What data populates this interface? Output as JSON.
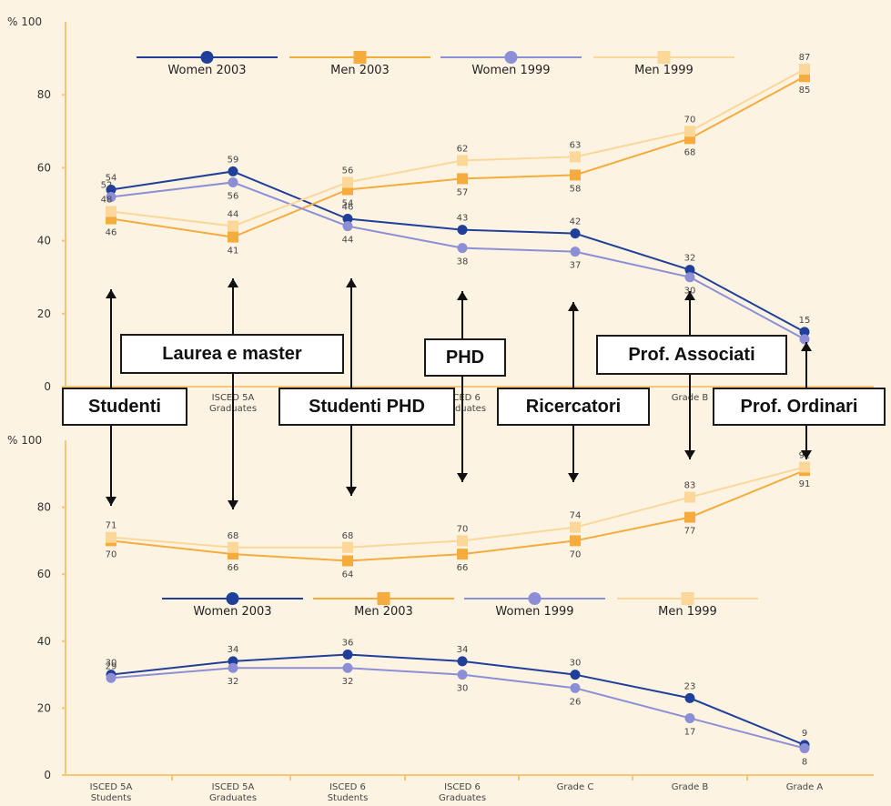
{
  "chart_data": [
    {
      "type": "line",
      "y_axis_top_label": "% 100",
      "ylim": [
        0,
        100
      ],
      "yticks": [
        "0",
        "20",
        "40",
        "60",
        "80"
      ],
      "categories": [
        "",
        "ISCED 5A\nGraduates",
        "",
        "ISCED 6\nGraduates",
        "",
        "Grade B",
        ""
      ],
      "legend": [
        "Women 2003",
        "Men 2003",
        "Women 1999",
        "Men 1999"
      ],
      "series": [
        {
          "name": "Women 2003",
          "color": "#1f3f99",
          "marker": "circle",
          "values": [
            54,
            59,
            46,
            43,
            42,
            32,
            15
          ],
          "labels": [
            "54",
            "59",
            "46",
            "43",
            "42",
            "32",
            "15"
          ]
        },
        {
          "name": "Men 2003",
          "color": "#f5ac3d",
          "marker": "square",
          "values": [
            46,
            41,
            54,
            57,
            58,
            68,
            85
          ],
          "labels": [
            "46",
            "41",
            "54",
            "57",
            "58",
            "68",
            "85"
          ]
        },
        {
          "name": "Women 1999",
          "color": "#8d8fd6",
          "marker": "circle",
          "values": [
            52,
            56,
            44,
            38,
            37,
            30,
            13
          ],
          "labels": [
            "52",
            "56",
            "44",
            "38",
            "37",
            "30",
            ""
          ]
        },
        {
          "name": "Men 1999",
          "color": "#fbd79a",
          "marker": "square",
          "values": [
            48,
            44,
            56,
            62,
            63,
            70,
            87
          ],
          "labels": [
            "48",
            "44",
            "56",
            "62",
            "63",
            "70",
            "87"
          ]
        }
      ]
    },
    {
      "type": "line",
      "y_axis_top_label": "% 100",
      "ylim": [
        0,
        100
      ],
      "yticks": [
        "0",
        "20",
        "40",
        "60",
        "80"
      ],
      "categories": [
        "ISCED 5A\nStudents",
        "ISCED 5A\nGraduates",
        "ISCED 6\nStudents",
        "ISCED 6\nGraduates",
        "Grade C",
        "Grade B",
        "Grade A"
      ],
      "legend": [
        "Women 2003",
        "Men 2003",
        "Women 1999",
        "Men 1999"
      ],
      "series": [
        {
          "name": "Women 2003",
          "color": "#1f3f99",
          "marker": "circle",
          "values": [
            30,
            34,
            36,
            34,
            30,
            23,
            9
          ],
          "labels": [
            "30",
            "34",
            "36",
            "34",
            "30",
            "23",
            "9"
          ]
        },
        {
          "name": "Men 2003",
          "color": "#f5ac3d",
          "marker": "square",
          "values": [
            70,
            66,
            64,
            66,
            70,
            77,
            91
          ],
          "labels": [
            "70",
            "66",
            "64",
            "66",
            "70",
            "77",
            "91"
          ]
        },
        {
          "name": "Women 1999",
          "color": "#8d8fd6",
          "marker": "circle",
          "values": [
            29,
            32,
            32,
            30,
            26,
            17,
            8
          ],
          "labels": [
            "29",
            "32",
            "32",
            "30",
            "26",
            "17",
            "8"
          ]
        },
        {
          "name": "Men 1999",
          "color": "#fbd79a",
          "marker": "square",
          "values": [
            71,
            68,
            68,
            70,
            74,
            83,
            92
          ],
          "labels": [
            "71",
            "68",
            "68",
            "70",
            "74",
            "83",
            "92"
          ]
        }
      ]
    }
  ],
  "callouts": {
    "studenti": "Studenti",
    "laurea": "Laurea e master",
    "studenti_phd": "Studenti PHD",
    "phd": "PHD",
    "ricercatori": "Ricercatori",
    "prof_associati": "Prof. Associati",
    "prof_ordinari": "Prof. Ordinari"
  },
  "colors": {
    "panel_bg": "#fdf3e2",
    "axis": "#f6c774"
  }
}
